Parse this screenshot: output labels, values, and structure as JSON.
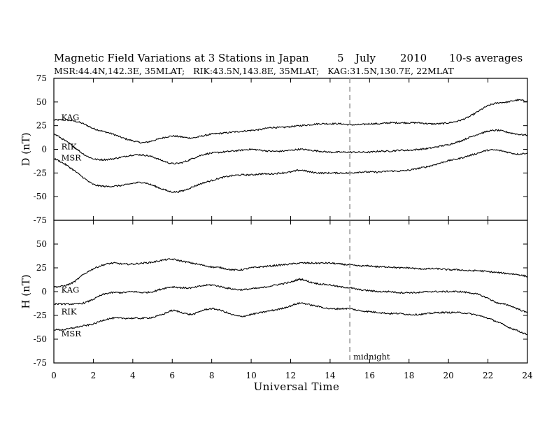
{
  "chart_data": {
    "type": "line",
    "title": "Magnetic Field Variations at 3 Stations in Japan",
    "title_date": [
      "5",
      "July",
      "2010"
    ],
    "title_note": "10-s averages",
    "subtitle": "MSR:44.4N,142.3E, 35MLAT;   RIK:43.5N,143.8E, 35MLAT;   KAG:31.5N,130.7E, 22MLAT",
    "xlabel": "Universal Time",
    "xlim": [
      0,
      24
    ],
    "xticks": [
      0,
      2,
      4,
      6,
      8,
      10,
      12,
      14,
      16,
      18,
      20,
      22,
      24
    ],
    "xtick_labels": [
      "0",
      "2",
      "4",
      "6",
      "8",
      "10",
      "12",
      "14",
      "16",
      "18",
      "20",
      "22",
      "24"
    ],
    "midnight_ut": 15,
    "midnight_label": "midnight",
    "panels": [
      {
        "ylabel": "D (nT)",
        "ylim": [
          -75,
          75
        ],
        "yticks": [
          -75,
          -50,
          -25,
          0,
          25,
          50,
          75
        ],
        "ytick_labels": [
          "-75",
          "-50",
          "-25",
          "0",
          "25",
          "50",
          "75"
        ],
        "series": [
          {
            "name": "KAG",
            "label_pos": [
              0.2,
              34
            ],
            "x": [
              0,
              0.5,
              1,
              1.5,
              2,
              2.5,
              3,
              3.5,
              4,
              4.5,
              5,
              5.5,
              6,
              6.5,
              7,
              7.5,
              8,
              8.5,
              9,
              9.5,
              10,
              10.5,
              11,
              11.5,
              12,
              12.5,
              13,
              13.5,
              14,
              14.5,
              15,
              15.5,
              16,
              16.5,
              17,
              17.5,
              18,
              18.5,
              19,
              19.5,
              20,
              20.5,
              21,
              21.5,
              22,
              22.5,
              23,
              23.5,
              24
            ],
            "y": [
              31,
              31,
              30,
              27,
              22,
              19,
              16,
              12,
              9,
              7,
              9,
              12,
              14,
              13,
              12,
              14,
              16,
              17,
              18,
              19,
              20,
              21,
              23,
              23,
              24,
              25,
              26,
              27,
              27,
              27,
              26,
              26,
              27,
              27,
              28,
              28,
              28,
              28,
              27,
              27,
              28,
              30,
              34,
              40,
              46,
              49,
              50,
              52,
              51
            ]
          },
          {
            "name": "RIK",
            "label_pos": [
              0.2,
              3
            ],
            "x": [
              0,
              0.5,
              1,
              1.5,
              2,
              2.5,
              3,
              3.5,
              4,
              4.5,
              5,
              5.5,
              6,
              6.5,
              7,
              7.5,
              8,
              8.5,
              9,
              9.5,
              10,
              10.5,
              11,
              11.5,
              12,
              12.5,
              13,
              13.5,
              14,
              14.5,
              15,
              15.5,
              16,
              16.5,
              17,
              17.5,
              18,
              18.5,
              19,
              19.5,
              20,
              20.5,
              21,
              21.5,
              22,
              22.5,
              23,
              23.5,
              24
            ],
            "y": [
              16,
              10,
              3,
              -5,
              -10,
              -11,
              -10,
              -8,
              -6,
              -6,
              -8,
              -12,
              -15,
              -14,
              -10,
              -6,
              -4,
              -3,
              -2,
              -1,
              0,
              -1,
              -2,
              -2,
              -1,
              0,
              -1,
              -2,
              -3,
              -3,
              -3,
              -3,
              -3,
              -2,
              -2,
              -1,
              -1,
              0,
              1,
              3,
              5,
              8,
              12,
              16,
              19,
              20,
              18,
              16,
              15
            ]
          },
          {
            "name": "MSR",
            "label_pos": [
              0.2,
              -9
            ],
            "x": [
              0,
              0.5,
              1,
              1.5,
              2,
              2.5,
              3,
              3.5,
              4,
              4.5,
              5,
              5.5,
              6,
              6.5,
              7,
              7.5,
              8,
              8.5,
              9,
              9.5,
              10,
              10.5,
              11,
              11.5,
              12,
              12.5,
              13,
              13.5,
              14,
              14.5,
              15,
              15.5,
              16,
              16.5,
              17,
              17.5,
              18,
              18.5,
              19,
              19.5,
              20,
              20.5,
              21,
              21.5,
              22,
              22.5,
              23,
              23.5,
              24
            ],
            "y": [
              -10,
              -15,
              -22,
              -30,
              -37,
              -39,
              -39,
              -38,
              -36,
              -35,
              -38,
              -42,
              -45,
              -44,
              -40,
              -36,
              -33,
              -30,
              -28,
              -27,
              -27,
              -26,
              -26,
              -25,
              -24,
              -22,
              -24,
              -25,
              -25,
              -25,
              -25,
              -24,
              -24,
              -24,
              -23,
              -23,
              -22,
              -20,
              -18,
              -15,
              -12,
              -10,
              -7,
              -4,
              -1,
              -1,
              -3,
              -5,
              -4
            ]
          }
        ]
      },
      {
        "ylabel": "H (nT)",
        "ylim": [
          -75,
          75
        ],
        "yticks": [
          -75,
          -50,
          -25,
          0,
          25,
          50,
          75
        ],
        "ytick_labels": [
          "-75",
          "-50",
          "-25",
          "0",
          "25",
          "50",
          "75"
        ],
        "series": [
          {
            "name": "KAG",
            "label_pos": [
              0.2,
              2
            ],
            "x": [
              0,
              0.5,
              1,
              1.5,
              2,
              2.5,
              3,
              3.5,
              4,
              4.5,
              5,
              5.5,
              6,
              6.5,
              7,
              7.5,
              8,
              8.5,
              9,
              9.5,
              10,
              10.5,
              11,
              11.5,
              12,
              12.5,
              13,
              13.5,
              14,
              14.5,
              15,
              15.5,
              16,
              16.5,
              17,
              17.5,
              18,
              18.5,
              19,
              19.5,
              20,
              20.5,
              21,
              21.5,
              22,
              22.5,
              23,
              23.5,
              24
            ],
            "y": [
              5,
              6,
              10,
              18,
              24,
              28,
              30,
              29,
              29,
              30,
              31,
              33,
              34,
              32,
              30,
              28,
              26,
              25,
              23,
              23,
              25,
              26,
              27,
              28,
              29,
              30,
              30,
              30,
              30,
              29,
              28,
              27,
              27,
              26,
              26,
              25,
              25,
              24,
              24,
              24,
              23,
              23,
              22,
              22,
              21,
              20,
              19,
              18,
              16
            ]
          },
          {
            "name": "RIK",
            "label_pos": [
              0.2,
              -21
            ],
            "x": [
              0,
              0.5,
              1,
              1.5,
              2,
              2.5,
              3,
              3.5,
              4,
              4.5,
              5,
              5.5,
              6,
              6.5,
              7,
              7.5,
              8,
              8.5,
              9,
              9.5,
              10,
              10.5,
              11,
              11.5,
              12,
              12.5,
              13,
              13.5,
              14,
              14.5,
              15,
              15.5,
              16,
              16.5,
              17,
              17.5,
              18,
              18.5,
              19,
              19.5,
              20,
              20.5,
              21,
              21.5,
              22,
              22.5,
              23,
              23.5,
              24
            ],
            "y": [
              -13,
              -13,
              -13,
              -12,
              -8,
              -3,
              -1,
              -1,
              0,
              -1,
              0,
              3,
              5,
              4,
              4,
              6,
              7,
              5,
              3,
              2,
              3,
              4,
              6,
              8,
              10,
              13,
              10,
              8,
              7,
              5,
              4,
              2,
              1,
              0,
              0,
              -1,
              -1,
              -1,
              0,
              0,
              0,
              0,
              -1,
              -3,
              -7,
              -12,
              -14,
              -18,
              -22
            ]
          },
          {
            "name": "MSR",
            "label_pos": [
              0.2,
              -44
            ],
            "x": [
              0,
              0.5,
              1,
              1.5,
              2,
              2.5,
              3,
              3.5,
              4,
              4.5,
              5,
              5.5,
              6,
              6.5,
              7,
              7.5,
              8,
              8.5,
              9,
              9.5,
              10,
              10.5,
              11,
              11.5,
              12,
              12.5,
              13,
              13.5,
              14,
              14.5,
              15,
              15.5,
              16,
              16.5,
              17,
              17.5,
              18,
              18.5,
              19,
              19.5,
              20,
              20.5,
              21,
              21.5,
              22,
              22.5,
              23,
              23.5,
              24
            ],
            "y": [
              -40,
              -40,
              -38,
              -36,
              -34,
              -30,
              -28,
              -28,
              -28,
              -28,
              -27,
              -24,
              -20,
              -22,
              -24,
              -20,
              -18,
              -20,
              -24,
              -26,
              -24,
              -22,
              -20,
              -18,
              -15,
              -12,
              -14,
              -16,
              -18,
              -18,
              -18,
              -20,
              -21,
              -22,
              -23,
              -23,
              -24,
              -24,
              -23,
              -22,
              -22,
              -22,
              -23,
              -25,
              -28,
              -32,
              -37,
              -41,
              -45
            ]
          }
        ]
      }
    ]
  }
}
